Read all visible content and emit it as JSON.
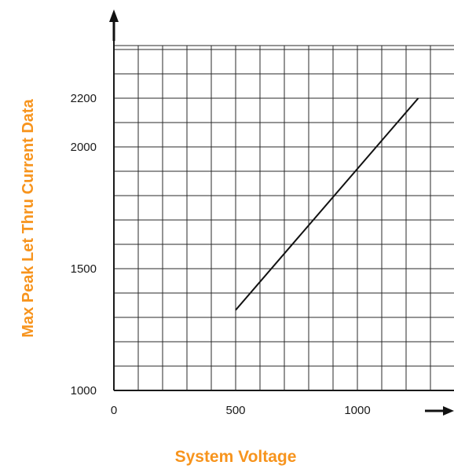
{
  "chart_data": {
    "type": "line",
    "title": "",
    "xlabel": "System Voltage",
    "ylabel": "Max Peak Let Thru Current Data",
    "x_ticks": [
      0,
      500,
      1000
    ],
    "y_ticks": [
      1000,
      1500,
      2000,
      2200
    ],
    "xlim": [
      0,
      1400
    ],
    "ylim": [
      1000,
      2450
    ],
    "grid": true,
    "legend": "none",
    "series": [
      {
        "x": [
          500,
          1250
        ],
        "y": [
          1330,
          2200
        ]
      }
    ]
  },
  "colors": {
    "axis_title": "#f7941d",
    "line": "#111111",
    "grid": "#2a2a2a"
  }
}
